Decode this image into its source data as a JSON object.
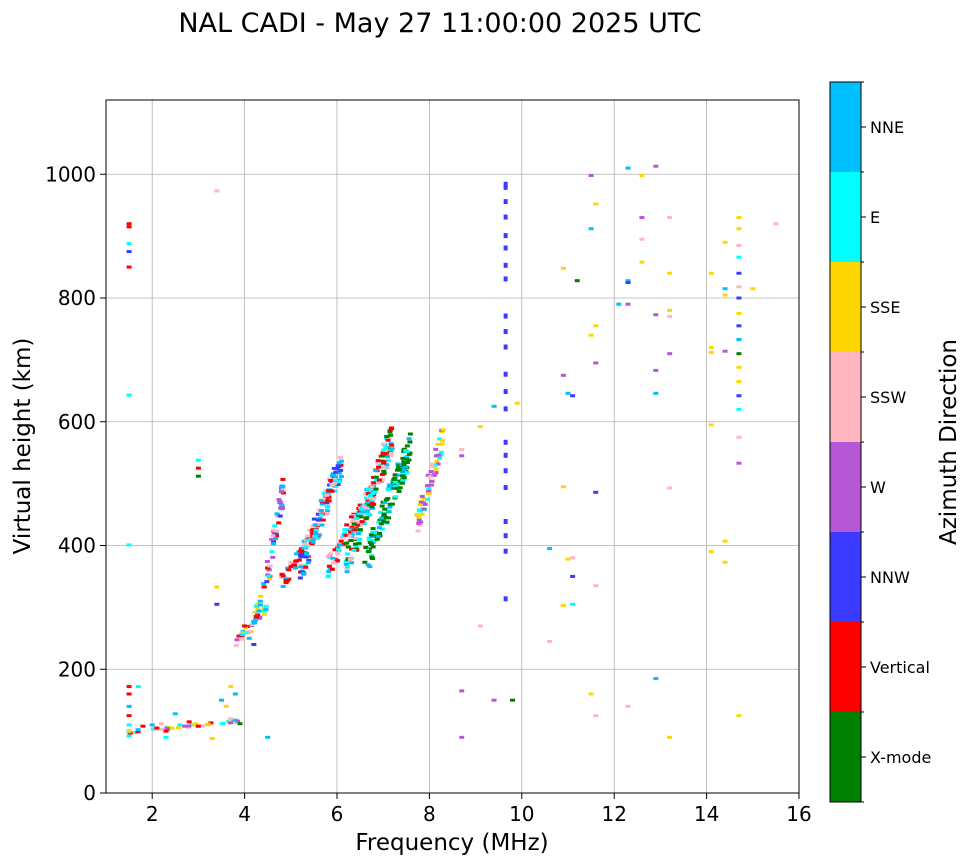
{
  "chart_data": {
    "type": "scatter",
    "title": "NAL CADI - May 27 11:00:00 2025 UTC",
    "xlabel": "Frequency (MHz)",
    "ylabel": "Virtual height (km)",
    "xlim": [
      1,
      16
    ],
    "ylim": [
      0,
      1120
    ],
    "xticks": [
      2,
      4,
      6,
      8,
      10,
      12,
      14,
      16
    ],
    "yticks": [
      0,
      200,
      400,
      600,
      800,
      1000
    ],
    "grid": true,
    "colorbar": {
      "label": "Azimuth Direction",
      "categories": [
        {
          "name": "X-mode",
          "color": "#008000"
        },
        {
          "name": "Vertical",
          "color": "#ff0000"
        },
        {
          "name": "NNW",
          "color": "#3b3bff"
        },
        {
          "name": "W",
          "color": "#b657d6"
        },
        {
          "name": "SSW",
          "color": "#ffb6c1"
        },
        {
          "name": "SSE",
          "color": "#ffd700"
        },
        {
          "name": "E",
          "color": "#00ffff"
        },
        {
          "name": "NNE",
          "color": "#00bfff"
        }
      ]
    },
    "points": [
      {
        "f": 1.5,
        "h": 920,
        "d": "Vertical"
      },
      {
        "f": 1.5,
        "h": 915,
        "d": "Vertical"
      },
      {
        "f": 1.5,
        "h": 888,
        "d": "E"
      },
      {
        "f": 1.5,
        "h": 875,
        "d": "NNW"
      },
      {
        "f": 1.5,
        "h": 850,
        "d": "Vertical"
      },
      {
        "f": 1.5,
        "h": 643,
        "d": "E"
      },
      {
        "f": 1.5,
        "h": 401,
        "d": "E"
      },
      {
        "f": 1.5,
        "h": 172,
        "d": "Vertical"
      },
      {
        "f": 1.5,
        "h": 160,
        "d": "Vertical"
      },
      {
        "f": 1.5,
        "h": 140,
        "d": "NNE"
      },
      {
        "f": 1.5,
        "h": 125,
        "d": "Vertical"
      },
      {
        "f": 1.5,
        "h": 110,
        "d": "E"
      },
      {
        "f": 1.5,
        "h": 100,
        "d": "SSE"
      },
      {
        "f": 1.5,
        "h": 92,
        "d": "E"
      },
      {
        "f": 1.7,
        "h": 172,
        "d": "E"
      },
      {
        "f": 1.8,
        "h": 108,
        "d": "Vertical"
      },
      {
        "f": 2.0,
        "h": 110,
        "d": "NNE"
      },
      {
        "f": 2.1,
        "h": 105,
        "d": "Vertical"
      },
      {
        "f": 2.2,
        "h": 112,
        "d": "SSW"
      },
      {
        "f": 2.3,
        "h": 100,
        "d": "Vertical"
      },
      {
        "f": 2.3,
        "h": 90,
        "d": "E"
      },
      {
        "f": 2.5,
        "h": 128,
        "d": "NNE"
      },
      {
        "f": 2.6,
        "h": 110,
        "d": "E"
      },
      {
        "f": 2.7,
        "h": 108,
        "d": "W"
      },
      {
        "f": 2.8,
        "h": 115,
        "d": "Vertical"
      },
      {
        "f": 3.0,
        "h": 538,
        "d": "E"
      },
      {
        "f": 3.0,
        "h": 525,
        "d": "Vertical"
      },
      {
        "f": 3.0,
        "h": 512,
        "d": "X-mode"
      },
      {
        "f": 3.0,
        "h": 108,
        "d": "Vertical"
      },
      {
        "f": 3.2,
        "h": 110,
        "d": "SSE"
      },
      {
        "f": 3.3,
        "h": 88,
        "d": "SSE"
      },
      {
        "f": 3.4,
        "h": 973,
        "d": "SSW"
      },
      {
        "f": 3.4,
        "h": 333,
        "d": "SSE"
      },
      {
        "f": 3.4,
        "h": 305,
        "d": "NNW"
      },
      {
        "f": 3.5,
        "h": 150,
        "d": "NNE"
      },
      {
        "f": 3.6,
        "h": 140,
        "d": "SSE"
      },
      {
        "f": 3.7,
        "h": 172,
        "d": "SSE"
      },
      {
        "f": 3.7,
        "h": 120,
        "d": "SSW"
      },
      {
        "f": 3.8,
        "h": 160,
        "d": "NNE"
      },
      {
        "f": 3.9,
        "h": 112,
        "d": "X-mode"
      },
      {
        "f": 4.0,
        "h": 270,
        "d": "Vertical"
      },
      {
        "f": 4.1,
        "h": 250,
        "d": "NNE"
      },
      {
        "f": 4.2,
        "h": 240,
        "d": "NNW"
      },
      {
        "f": 4.5,
        "h": 90,
        "d": "NNE"
      },
      {
        "f": 8.3,
        "h": 587,
        "d": "SSE"
      },
      {
        "f": 8.7,
        "h": 555,
        "d": "SSW"
      },
      {
        "f": 8.7,
        "h": 545,
        "d": "W"
      },
      {
        "f": 8.7,
        "h": 165,
        "d": "W"
      },
      {
        "f": 8.7,
        "h": 90,
        "d": "W"
      },
      {
        "f": 9.1,
        "h": 592,
        "d": "SSE"
      },
      {
        "f": 9.1,
        "h": 270,
        "d": "SSW"
      },
      {
        "f": 9.4,
        "h": 625,
        "d": "NNE"
      },
      {
        "f": 9.4,
        "h": 150,
        "d": "W"
      },
      {
        "f": 9.8,
        "h": 150,
        "d": "X-mode"
      },
      {
        "f": 9.9,
        "h": 630,
        "d": "SSE"
      },
      {
        "f": 10.6,
        "h": 395,
        "d": "NNE"
      },
      {
        "f": 10.6,
        "h": 245,
        "d": "SSW"
      },
      {
        "f": 10.9,
        "h": 848,
        "d": "SSE"
      },
      {
        "f": 10.9,
        "h": 675,
        "d": "W"
      },
      {
        "f": 10.9,
        "h": 495,
        "d": "SSE"
      },
      {
        "f": 10.9,
        "h": 303,
        "d": "SSE"
      },
      {
        "f": 11.0,
        "h": 378,
        "d": "SSE"
      },
      {
        "f": 11.0,
        "h": 646,
        "d": "NNE"
      },
      {
        "f": 11.1,
        "h": 642,
        "d": "NNW"
      },
      {
        "f": 11.1,
        "h": 380,
        "d": "SSW"
      },
      {
        "f": 11.1,
        "h": 350,
        "d": "NNW"
      },
      {
        "f": 11.1,
        "h": 305,
        "d": "E"
      },
      {
        "f": 11.2,
        "h": 828,
        "d": "X-mode"
      },
      {
        "f": 11.5,
        "h": 998,
        "d": "W"
      },
      {
        "f": 11.5,
        "h": 912,
        "d": "NNE"
      },
      {
        "f": 11.5,
        "h": 740,
        "d": "SSE"
      },
      {
        "f": 11.5,
        "h": 160,
        "d": "SSE"
      },
      {
        "f": 11.6,
        "h": 952,
        "d": "SSE"
      },
      {
        "f": 11.6,
        "h": 755,
        "d": "SSE"
      },
      {
        "f": 11.6,
        "h": 695,
        "d": "W"
      },
      {
        "f": 11.6,
        "h": 486,
        "d": "NNW"
      },
      {
        "f": 11.6,
        "h": 335,
        "d": "SSW"
      },
      {
        "f": 11.6,
        "h": 125,
        "d": "SSW"
      },
      {
        "f": 12.1,
        "h": 790,
        "d": "NNE"
      },
      {
        "f": 12.3,
        "h": 1010,
        "d": "NNE"
      },
      {
        "f": 12.3,
        "h": 828,
        "d": "NNE"
      },
      {
        "f": 12.3,
        "h": 825,
        "d": "NNW"
      },
      {
        "f": 12.3,
        "h": 790,
        "d": "W"
      },
      {
        "f": 12.3,
        "h": 140,
        "d": "SSW"
      },
      {
        "f": 12.6,
        "h": 998,
        "d": "SSE"
      },
      {
        "f": 12.6,
        "h": 930,
        "d": "W"
      },
      {
        "f": 12.6,
        "h": 895,
        "d": "SSW"
      },
      {
        "f": 12.6,
        "h": 858,
        "d": "SSE"
      },
      {
        "f": 12.9,
        "h": 1013,
        "d": "W"
      },
      {
        "f": 12.9,
        "h": 773,
        "d": "W"
      },
      {
        "f": 12.9,
        "h": 683,
        "d": "W"
      },
      {
        "f": 12.9,
        "h": 646,
        "d": "NNE"
      },
      {
        "f": 12.9,
        "h": 185,
        "d": "NNE"
      },
      {
        "f": 13.2,
        "h": 930,
        "d": "SSW"
      },
      {
        "f": 13.2,
        "h": 840,
        "d": "SSE"
      },
      {
        "f": 13.2,
        "h": 780,
        "d": "SSE"
      },
      {
        "f": 13.2,
        "h": 770,
        "d": "SSW"
      },
      {
        "f": 13.2,
        "h": 710,
        "d": "W"
      },
      {
        "f": 13.2,
        "h": 493,
        "d": "SSW"
      },
      {
        "f": 13.2,
        "h": 90,
        "d": "SSE"
      },
      {
        "f": 14.1,
        "h": 840,
        "d": "SSE"
      },
      {
        "f": 14.1,
        "h": 720,
        "d": "SSE"
      },
      {
        "f": 14.1,
        "h": 712,
        "d": "SSE"
      },
      {
        "f": 14.1,
        "h": 595,
        "d": "SSE"
      },
      {
        "f": 14.1,
        "h": 390,
        "d": "SSE"
      },
      {
        "f": 14.4,
        "h": 890,
        "d": "SSE"
      },
      {
        "f": 14.4,
        "h": 815,
        "d": "NNE"
      },
      {
        "f": 14.4,
        "h": 805,
        "d": "SSE"
      },
      {
        "f": 14.4,
        "h": 714,
        "d": "W"
      },
      {
        "f": 14.4,
        "h": 407,
        "d": "SSE"
      },
      {
        "f": 14.4,
        "h": 373,
        "d": "SSE"
      },
      {
        "f": 14.7,
        "h": 930,
        "d": "SSE"
      },
      {
        "f": 14.7,
        "h": 912,
        "d": "SSE"
      },
      {
        "f": 14.7,
        "h": 885,
        "d": "SSW"
      },
      {
        "f": 14.7,
        "h": 866,
        "d": "E"
      },
      {
        "f": 14.7,
        "h": 840,
        "d": "NNW"
      },
      {
        "f": 14.7,
        "h": 818,
        "d": "SSW"
      },
      {
        "f": 14.7,
        "h": 800,
        "d": "NNW"
      },
      {
        "f": 14.7,
        "h": 775,
        "d": "SSE"
      },
      {
        "f": 14.7,
        "h": 755,
        "d": "NNW"
      },
      {
        "f": 14.7,
        "h": 733,
        "d": "NNE"
      },
      {
        "f": 14.7,
        "h": 710,
        "d": "X-mode"
      },
      {
        "f": 14.7,
        "h": 688,
        "d": "SSE"
      },
      {
        "f": 14.7,
        "h": 665,
        "d": "SSE"
      },
      {
        "f": 14.7,
        "h": 642,
        "d": "NNW"
      },
      {
        "f": 14.7,
        "h": 620,
        "d": "E"
      },
      {
        "f": 14.7,
        "h": 575,
        "d": "SSW"
      },
      {
        "f": 14.7,
        "h": 533,
        "d": "W"
      },
      {
        "f": 14.7,
        "h": 125,
        "d": "SSE"
      },
      {
        "f": 15.0,
        "h": 815,
        "d": "SSE"
      },
      {
        "f": 15.5,
        "h": 920,
        "d": "SSW"
      }
    ],
    "columns": [
      {
        "f": 9.65,
        "heights": [
          983,
          978,
          955,
          930,
          900,
          880,
          852,
          830,
          770,
          745,
          720,
          676,
          648,
          620,
          566,
          545,
          520,
          493,
          438,
          415,
          390,
          313
        ],
        "d": "NNW"
      }
    ],
    "trace_bands": [
      {
        "f0": 1.5,
        "f1": 4.0,
        "h0": 98,
        "h1": 118,
        "dirs": [
          "Vertical",
          "NNE",
          "SSW",
          "E",
          "W",
          "SSE"
        ]
      },
      {
        "f0": 3.8,
        "f1": 4.5,
        "h0": 240,
        "h1": 300,
        "dirs": [
          "Vertical",
          "NNE",
          "E",
          "SSW",
          "W",
          "SSE"
        ]
      },
      {
        "f0": 4.2,
        "f1": 4.55,
        "h0": 280,
        "h1": 360,
        "dirs": [
          "NNE",
          "Vertical",
          "E",
          "SSE"
        ]
      },
      {
        "f0": 4.45,
        "f1": 4.85,
        "h0": 340,
        "h1": 495,
        "dirs": [
          "Vertical",
          "NNE",
          "E",
          "SSW",
          "W",
          "NNW"
        ]
      },
      {
        "f0": 4.8,
        "f1": 5.6,
        "h0": 340,
        "h1": 430,
        "dirs": [
          "Vertical",
          "Vertical",
          "Vertical",
          "NNE",
          "SSW"
        ]
      },
      {
        "f0": 5.2,
        "f1": 6.1,
        "h0": 360,
        "h1": 535,
        "dirs": [
          "NNE",
          "E",
          "Vertical",
          "NNW",
          "SSW"
        ]
      },
      {
        "f0": 5.8,
        "f1": 6.8,
        "h0": 365,
        "h1": 490,
        "dirs": [
          "Vertical",
          "Vertical",
          "NNE",
          "E",
          "SSW"
        ]
      },
      {
        "f0": 6.2,
        "f1": 7.2,
        "h0": 375,
        "h1": 575,
        "dirs": [
          "Vertical",
          "E",
          "NNE",
          "SSW",
          "X-mode"
        ]
      },
      {
        "f0": 6.6,
        "f1": 7.6,
        "h0": 370,
        "h1": 560,
        "dirs": [
          "X-mode",
          "X-mode",
          "X-mode",
          "E",
          "NNE"
        ]
      },
      {
        "f0": 7.7,
        "f1": 8.3,
        "h0": 430,
        "h1": 575,
        "dirs": [
          "W",
          "W",
          "SSW",
          "E",
          "SSE"
        ]
      }
    ]
  }
}
